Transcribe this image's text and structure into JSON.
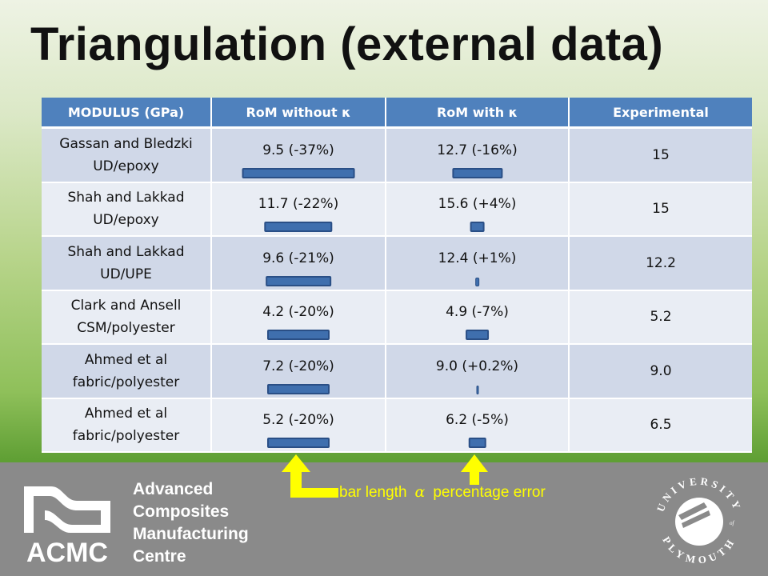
{
  "title": "Triangulation (external data)",
  "table": {
    "headers": [
      "MODULUS (GPa)",
      "RoM without κ",
      "RoM with κ",
      "Experimental"
    ],
    "rows": [
      {
        "material": "Gassan and Bledzki",
        "form": "UD/epoxy",
        "without_k": "9.5  (-37%)",
        "with_k": "12.7  (-16%)",
        "experimental": "15",
        "err_without": 37,
        "err_with": 16
      },
      {
        "material": "Shah and Lakkad",
        "form": "UD/epoxy",
        "without_k": "11.7  (-22%)",
        "with_k": "15.6  (+4%)",
        "experimental": "15",
        "err_without": 22,
        "err_with": 4
      },
      {
        "material": "Shah and Lakkad",
        "form": "UD/UPE",
        "without_k": "9.6  (-21%)",
        "with_k": "12.4  (+1%)",
        "experimental": "12.2",
        "err_without": 21,
        "err_with": 1
      },
      {
        "material": "Clark and Ansell",
        "form": "CSM/polyester",
        "without_k": "4.2  (-20%)",
        "with_k": "4.9  (-7%)",
        "experimental": "5.2",
        "err_without": 20,
        "err_with": 7
      },
      {
        "material": "Ahmed et al",
        "form": "fabric/polyester",
        "without_k": "7.2  (-20%)",
        "with_k": "9.0  (+0.2%)",
        "experimental": "9.0",
        "err_without": 20,
        "err_with": 0.2
      },
      {
        "material": "Ahmed et al",
        "form": "fabric/polyester",
        "without_k": "5.2  (-20%)",
        "with_k": "6.2  (-5%)",
        "experimental": "6.5",
        "err_without": 20,
        "err_with": 5
      }
    ]
  },
  "annotation": {
    "left": "bar length",
    "symbol": "α",
    "right": "percentage error"
  },
  "footer": {
    "acmc_lines": [
      "Advanced",
      "Composites",
      "Manufacturing",
      "Centre"
    ],
    "acmc_abbr": "ACMC",
    "university_top": "UNIVERSITY",
    "university_of": "of",
    "university_bottom": "PLYMOUTH"
  },
  "colors": {
    "header_bg": "#4f81bd",
    "bar_fill": "#3f6fae",
    "annotation": "#ffff00",
    "footer_bg": "#8a8a8a"
  }
}
